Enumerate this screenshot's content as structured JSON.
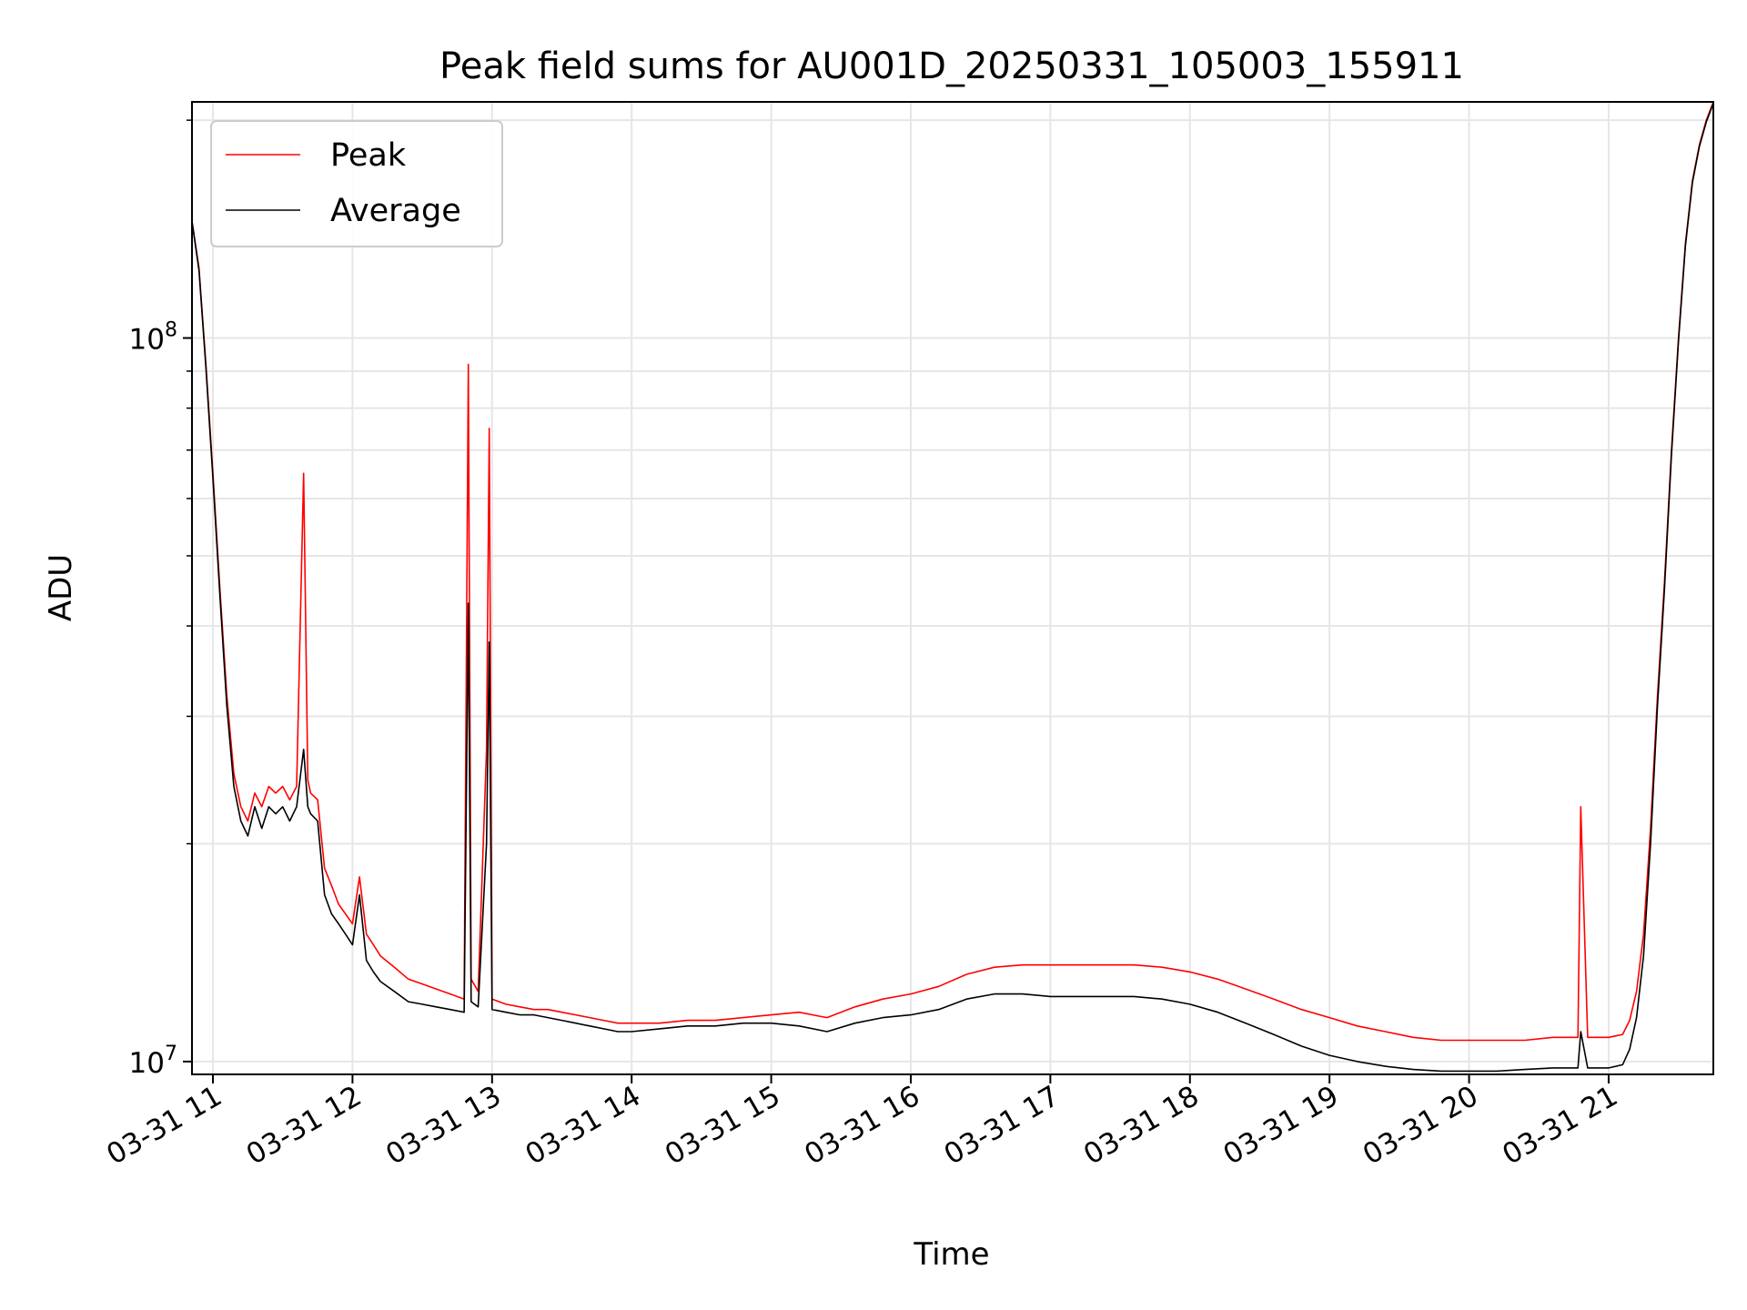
{
  "chart_data": {
    "type": "line",
    "title": "Peak field sums for AU001D_20250331_105003_155911",
    "xlabel": "Time",
    "ylabel": "ADU",
    "x_range": [
      "2025-03-31 10:51",
      "2025-03-31 21:45"
    ],
    "xlim_hours": [
      10.85,
      21.75
    ],
    "y_scale": "log",
    "ylim": [
      9600000,
      212000000
    ],
    "grid": true,
    "legend_position": "top-left",
    "x_ticks": [
      {
        "value": 11,
        "label": "03-31 11"
      },
      {
        "value": 12,
        "label": "03-31 12"
      },
      {
        "value": 13,
        "label": "03-31 13"
      },
      {
        "value": 14,
        "label": "03-31 14"
      },
      {
        "value": 15,
        "label": "03-31 15"
      },
      {
        "value": 16,
        "label": "03-31 16"
      },
      {
        "value": 17,
        "label": "03-31 17"
      },
      {
        "value": 18,
        "label": "03-31 18"
      },
      {
        "value": 19,
        "label": "03-31 19"
      },
      {
        "value": 20,
        "label": "03-31 20"
      },
      {
        "value": 21,
        "label": "03-31 21"
      }
    ],
    "y_ticks": [
      {
        "value": 10000000,
        "base": "10",
        "exp": "7"
      },
      {
        "value": 100000000,
        "base": "10",
        "exp": "8"
      }
    ],
    "series": [
      {
        "name": "Peak",
        "color": "#ff0000",
        "x": [
          10.85,
          10.9,
          10.95,
          11.0,
          11.05,
          11.1,
          11.15,
          11.2,
          11.25,
          11.3,
          11.35,
          11.4,
          11.45,
          11.5,
          11.55,
          11.6,
          11.65,
          11.68,
          11.7,
          11.75,
          11.8,
          11.85,
          11.9,
          11.95,
          12.0,
          12.05,
          12.1,
          12.15,
          12.2,
          12.3,
          12.4,
          12.5,
          12.6,
          12.7,
          12.8,
          12.83,
          12.85,
          12.9,
          12.96,
          12.98,
          13.0,
          13.1,
          13.2,
          13.3,
          13.4,
          13.5,
          13.6,
          13.7,
          13.8,
          13.9,
          14.0,
          14.2,
          14.4,
          14.6,
          14.8,
          15.0,
          15.2,
          15.4,
          15.6,
          15.8,
          16.0,
          16.2,
          16.4,
          16.6,
          16.8,
          17.0,
          17.2,
          17.4,
          17.6,
          17.8,
          18.0,
          18.2,
          18.4,
          18.6,
          18.8,
          19.0,
          19.2,
          19.4,
          19.6,
          19.8,
          20.0,
          20.2,
          20.4,
          20.6,
          20.78,
          20.8,
          20.85,
          21.0,
          21.1,
          21.15,
          21.2,
          21.25,
          21.3,
          21.35,
          21.4,
          21.45,
          21.5,
          21.55,
          21.6,
          21.65,
          21.7,
          21.75
        ],
        "values": [
          145000000,
          125000000,
          92000000,
          65000000,
          45000000,
          32000000,
          25000000,
          22500000,
          21500000,
          23500000,
          22500000,
          24000000,
          23500000,
          24000000,
          23000000,
          24000000,
          65000000,
          24500000,
          23500000,
          23000000,
          18500000,
          17500000,
          16500000,
          16000000,
          15500000,
          18000000,
          15000000,
          14500000,
          14000000,
          13500000,
          13000000,
          12800000,
          12600000,
          12400000,
          12200000,
          92000000,
          13000000,
          12500000,
          27000000,
          75000000,
          12200000,
          12000000,
          11900000,
          11800000,
          11800000,
          11700000,
          11600000,
          11500000,
          11400000,
          11300000,
          11300000,
          11300000,
          11400000,
          11400000,
          11500000,
          11600000,
          11700000,
          11500000,
          11900000,
          12200000,
          12400000,
          12700000,
          13200000,
          13500000,
          13600000,
          13600000,
          13600000,
          13600000,
          13600000,
          13500000,
          13300000,
          13000000,
          12600000,
          12200000,
          11800000,
          11500000,
          11200000,
          11000000,
          10800000,
          10700000,
          10700000,
          10700000,
          10700000,
          10800000,
          10800000,
          22500000,
          10800000,
          10800000,
          10900000,
          11400000,
          12500000,
          15000000,
          21000000,
          32000000,
          46000000,
          70000000,
          100000000,
          135000000,
          165000000,
          185000000,
          200000000,
          212000000
        ]
      },
      {
        "name": "Average",
        "color": "#000000",
        "x": [
          10.85,
          10.9,
          10.95,
          11.0,
          11.05,
          11.1,
          11.15,
          11.2,
          11.25,
          11.3,
          11.35,
          11.4,
          11.45,
          11.5,
          11.55,
          11.6,
          11.65,
          11.68,
          11.7,
          11.75,
          11.8,
          11.85,
          11.9,
          11.95,
          12.0,
          12.05,
          12.1,
          12.15,
          12.2,
          12.3,
          12.4,
          12.5,
          12.6,
          12.7,
          12.8,
          12.83,
          12.85,
          12.9,
          12.96,
          12.98,
          13.0,
          13.1,
          13.2,
          13.3,
          13.4,
          13.5,
          13.6,
          13.7,
          13.8,
          13.9,
          14.0,
          14.2,
          14.4,
          14.6,
          14.8,
          15.0,
          15.2,
          15.4,
          15.6,
          15.8,
          16.0,
          16.2,
          16.4,
          16.6,
          16.8,
          17.0,
          17.2,
          17.4,
          17.6,
          17.8,
          18.0,
          18.2,
          18.4,
          18.6,
          18.8,
          19.0,
          19.2,
          19.4,
          19.6,
          19.8,
          20.0,
          20.2,
          20.4,
          20.6,
          20.78,
          20.8,
          20.85,
          21.0,
          21.1,
          21.15,
          21.2,
          21.25,
          21.3,
          21.35,
          21.4,
          21.45,
          21.5,
          21.55,
          21.6,
          21.65,
          21.7,
          21.75
        ],
        "values": [
          145000000,
          124000000,
          91000000,
          64000000,
          44000000,
          31000000,
          24000000,
          21500000,
          20500000,
          22500000,
          21000000,
          22500000,
          22000000,
          22500000,
          21500000,
          22500000,
          27000000,
          22500000,
          22000000,
          21500000,
          17000000,
          16000000,
          15500000,
          15000000,
          14500000,
          17000000,
          13800000,
          13300000,
          12900000,
          12500000,
          12100000,
          12000000,
          11900000,
          11800000,
          11700000,
          43000000,
          12100000,
          11900000,
          20000000,
          38000000,
          11800000,
          11700000,
          11600000,
          11600000,
          11500000,
          11400000,
          11300000,
          11200000,
          11100000,
          11000000,
          11000000,
          11100000,
          11200000,
          11200000,
          11300000,
          11300000,
          11200000,
          11000000,
          11300000,
          11500000,
          11600000,
          11800000,
          12200000,
          12400000,
          12400000,
          12300000,
          12300000,
          12300000,
          12300000,
          12200000,
          12000000,
          11700000,
          11300000,
          10900000,
          10500000,
          10200000,
          10000000,
          9850000,
          9750000,
          9700000,
          9700000,
          9700000,
          9750000,
          9800000,
          9800000,
          11000000,
          9800000,
          9800000,
          9900000,
          10400000,
          11500000,
          14000000,
          20000000,
          31000000,
          45000000,
          69000000,
          99000000,
          134000000,
          164000000,
          184000000,
          199000000,
          211000000
        ]
      }
    ]
  }
}
